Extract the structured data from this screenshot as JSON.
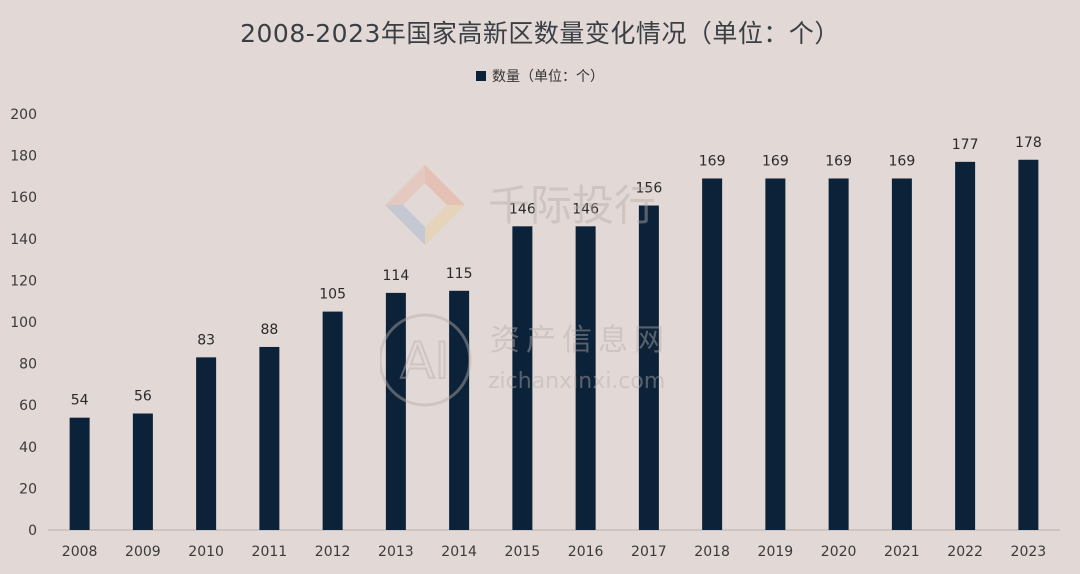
{
  "chart_data": {
    "type": "bar",
    "title": "2008-2023年国家高新区数量变化情况（单位：个）",
    "legend": [
      "数量（单位：个）"
    ],
    "legend_position": "top",
    "xlabel": "",
    "ylabel": "",
    "ylim": [
      0,
      200
    ],
    "yticks": [
      0,
      20,
      40,
      60,
      80,
      100,
      120,
      140,
      160,
      180,
      200
    ],
    "categories": [
      "2008",
      "2009",
      "2010",
      "2011",
      "2012",
      "2013",
      "2014",
      "2015",
      "2016",
      "2017",
      "2018",
      "2019",
      "2020",
      "2021",
      "2022",
      "2023"
    ],
    "series": [
      {
        "name": "数量（单位：个）",
        "values": [
          54,
          56,
          83,
          88,
          105,
          114,
          115,
          146,
          146,
          156,
          169,
          169,
          169,
          169,
          177,
          178
        ]
      }
    ],
    "grid": false,
    "bar_color": "#0b2239"
  },
  "watermark": {
    "brand_cn": "千际投行",
    "site_cn": "资产信息网",
    "site_url": "zichanxinxi.com",
    "logo_letters": "AI"
  }
}
